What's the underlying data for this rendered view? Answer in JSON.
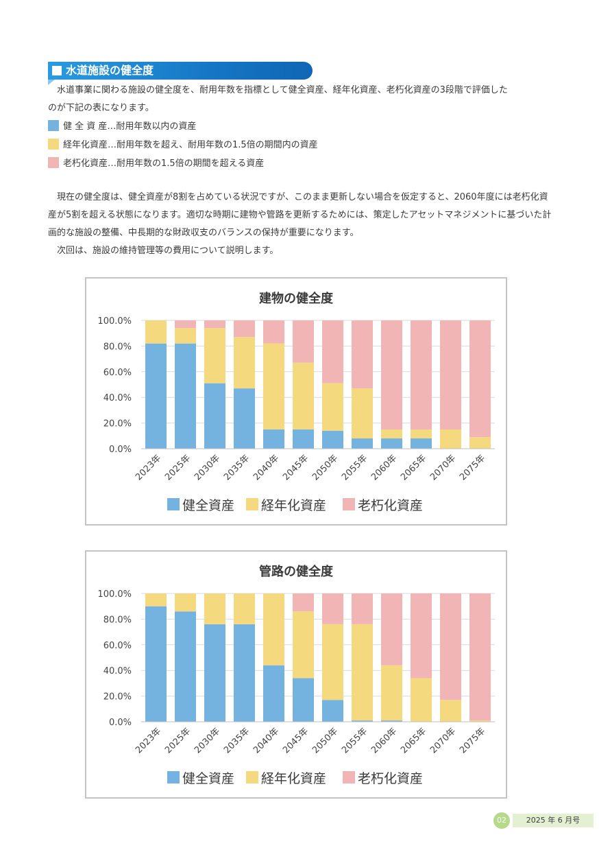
{
  "heading": {
    "title": "水道施設の健全度"
  },
  "intro": {
    "line1": "水道事業に関わる施設の健全度を、耐用年数を指標として健全資産、経年化資産、老朽化資産の3段階で評価した",
    "line2": "のが下記の表になります。"
  },
  "definitions": [
    {
      "label": "健 全 資 産…耐用年数以内の資産",
      "color": "#74b3df"
    },
    {
      "label": "経年化資産…耐用年数を超え、耐用年数の1.5倍の期間内の資産",
      "color": "#f5d97e"
    },
    {
      "label": "老朽化資産…耐用年数の1.5倍の期間を超える資産",
      "color": "#f2b5b5"
    }
  ],
  "body": {
    "p1": "現在の健全度は、健全資産が8割を占めている状況ですが、このまま更新しない場合を仮定すると、2060年度には老朽化資産が5割を超える状態になります。適切な時期に建物や管路を更新するためには、策定したアセットマネジメントに基づいた計画的な施設の整備、中長期的な財政収支のバランスの保持が重要になります。",
    "p2": "次回は、施設の維持管理等の費用について説明します。"
  },
  "chart_data": [
    {
      "type": "bar",
      "title": "建物の健全度",
      "categories": [
        "2023年",
        "2025年",
        "2030年",
        "2035年",
        "2040年",
        "2045年",
        "2050年",
        "2055年",
        "2060年",
        "2065年",
        "2070年",
        "2075年"
      ],
      "y_ticks": [
        "100.0%",
        "80.0%",
        "60.0%",
        "40.0%",
        "20.0%",
        "0.0%"
      ],
      "ylim": [
        0,
        100
      ],
      "stacked": true,
      "legend": "bottom",
      "grid": true,
      "series": [
        {
          "name": "健全資産",
          "color": "#74b3df",
          "values": [
            82,
            82,
            51,
            47,
            15,
            15,
            14,
            8,
            8,
            8,
            0,
            0
          ]
        },
        {
          "name": "経年化資産",
          "color": "#f5d97e",
          "values": [
            18,
            12,
            43,
            40,
            67,
            52,
            37,
            39,
            7,
            7,
            15,
            9
          ]
        },
        {
          "name": "老朽化資産",
          "color": "#f2b5b5",
          "values": [
            0,
            6,
            6,
            13,
            18,
            33,
            49,
            53,
            85,
            85,
            85,
            91
          ]
        }
      ]
    },
    {
      "type": "bar",
      "title": "管路の健全度",
      "categories": [
        "2023年",
        "2025年",
        "2030年",
        "2035年",
        "2040年",
        "2045年",
        "2050年",
        "2055年",
        "2060年",
        "2065年",
        "2070年",
        "2075年"
      ],
      "y_ticks": [
        "100.0%",
        "80.0%",
        "60.0%",
        "40.0%",
        "20.0%",
        "0.0%"
      ],
      "ylim": [
        0,
        100
      ],
      "stacked": true,
      "legend": "bottom",
      "grid": true,
      "series": [
        {
          "name": "健全資産",
          "color": "#74b3df",
          "values": [
            90,
            86,
            76,
            76,
            44,
            34,
            17,
            1,
            1,
            0,
            0,
            0
          ]
        },
        {
          "name": "経年化資産",
          "color": "#f5d97e",
          "values": [
            10,
            14,
            24,
            24,
            56,
            52,
            59,
            75,
            43,
            34,
            17,
            1
          ]
        },
        {
          "name": "老朽化資産",
          "color": "#f2b5b5",
          "values": [
            0,
            0,
            0,
            0,
            0,
            14,
            24,
            24,
            56,
            66,
            83,
            99
          ]
        }
      ]
    }
  ],
  "footer": {
    "page": "02",
    "date": "2025 年 6 月号"
  }
}
